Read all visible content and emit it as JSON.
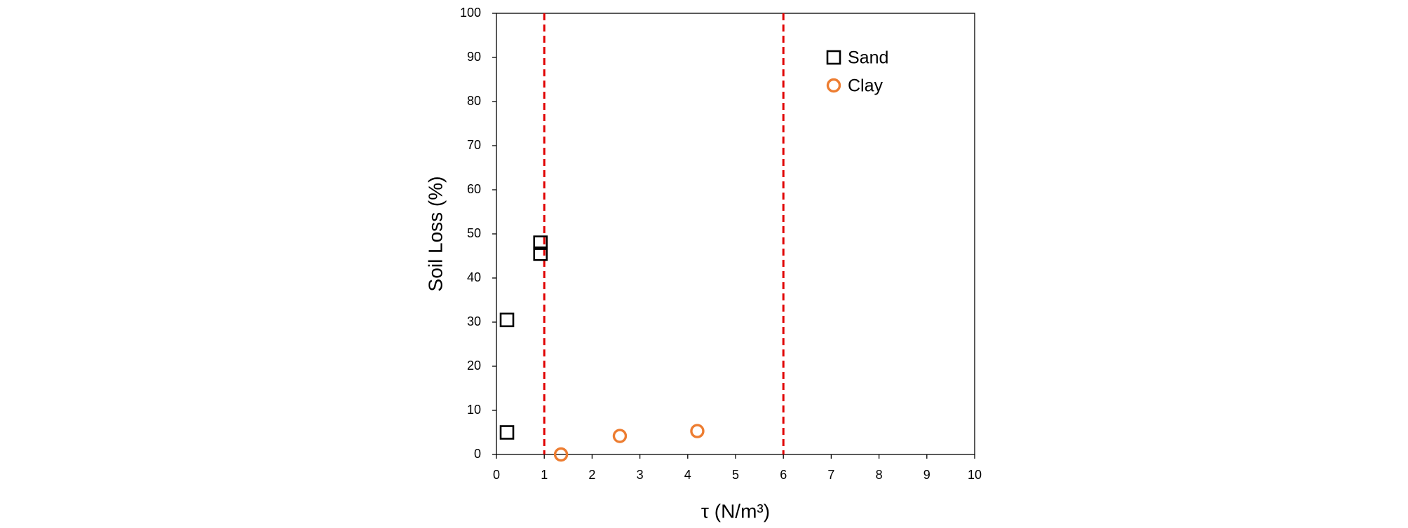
{
  "chart_data": {
    "type": "scatter",
    "x_label": "τ (N/m³)",
    "y_label": "Soil Loss (%)",
    "xlim": [
      0,
      10
    ],
    "ylim": [
      0,
      100
    ],
    "xticks": [
      0,
      1,
      2,
      3,
      4,
      5,
      6,
      7,
      8,
      9,
      10
    ],
    "yticks": [
      0,
      10,
      20,
      30,
      40,
      50,
      60,
      70,
      80,
      90,
      100
    ],
    "grid": false,
    "legend": "upper right",
    "vlines": [
      1,
      6
    ],
    "vline_color": "#e00000",
    "series": [
      {
        "name": "Sand",
        "color": "#000000",
        "marker": "square",
        "x": [
          0.22,
          0.22,
          0.92,
          0.92
        ],
        "values": [
          5,
          30.5,
          48,
          45.5
        ]
      },
      {
        "name": "Clay",
        "color": "#ed7d31",
        "marker": "circle",
        "x": [
          1.35,
          2.58,
          4.2
        ],
        "values": [
          0,
          4.2,
          5.3
        ]
      }
    ]
  }
}
